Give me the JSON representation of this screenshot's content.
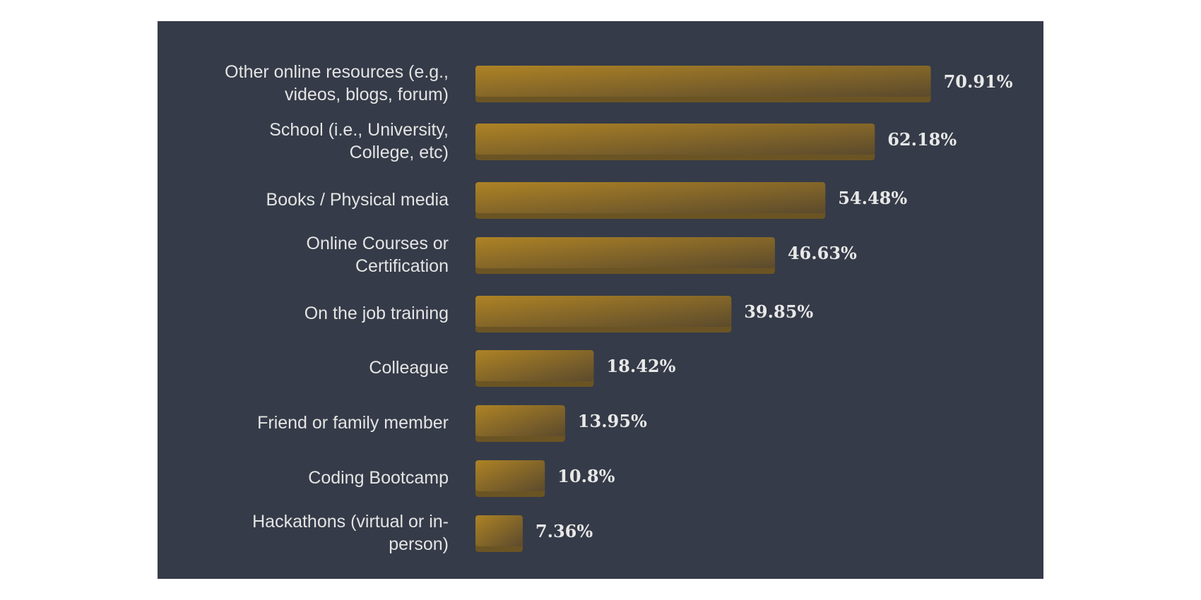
{
  "chart_data": {
    "type": "bar",
    "orientation": "horizontal",
    "categories": [
      "Other online resources (e.g., videos, blogs, forum)",
      "School (i.e., University, College, etc)",
      "Books / Physical media",
      "Online Courses or Certification",
      "On the job training",
      "Colleague",
      "Friend or family member",
      "Coding Bootcamp",
      "Hackathons (virtual or in-person)"
    ],
    "category_lines": [
      [
        "Other online resources (e.g.,",
        "videos, blogs, forum)"
      ],
      [
        "School (i.e., University,",
        "College, etc)"
      ],
      [
        "Books / Physical media"
      ],
      [
        "Online Courses or",
        "Certification"
      ],
      [
        "On the job training"
      ],
      [
        "Colleague"
      ],
      [
        "Friend or family member"
      ],
      [
        "Coding Bootcamp"
      ],
      [
        "Hackathons (virtual or in-",
        "person)"
      ]
    ],
    "values": [
      70.91,
      62.18,
      54.48,
      46.63,
      39.85,
      18.42,
      13.95,
      10.8,
      7.36
    ],
    "value_labels": [
      "70.91%",
      "62.18%",
      "54.48%",
      "46.63%",
      "39.85%",
      "18.42%",
      "13.95%",
      "10.8%",
      "7.36%"
    ],
    "xlim": [
      0,
      100
    ],
    "title": "",
    "xlabel": "",
    "ylabel": "",
    "grid": false,
    "legend": false,
    "colors": {
      "background": "#353b48",
      "page": "#ffffff",
      "bar_start": "#ae8325",
      "bar_end": "#5b4a2c",
      "bar_shadow": "#6b5424",
      "text": "#e4e4e4"
    }
  }
}
